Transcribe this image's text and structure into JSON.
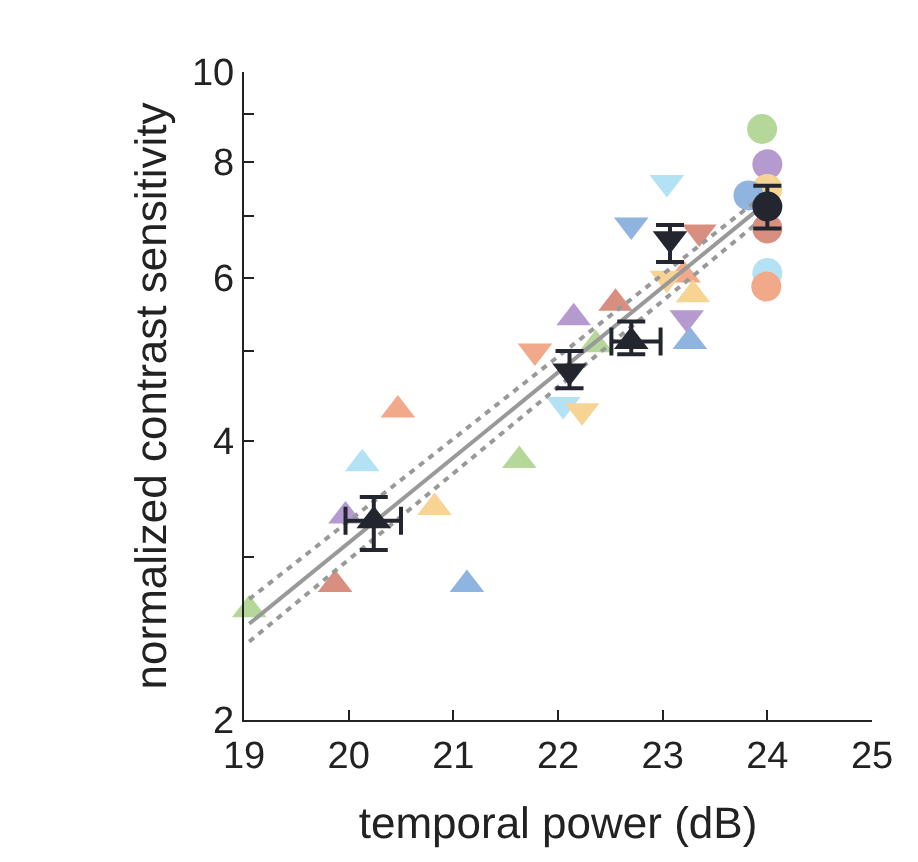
{
  "chart_data": {
    "type": "scatter",
    "xlabel": "temporal power (dB)",
    "ylabel": "normalized contrast sensitivity",
    "log": "y",
    "xlim": [
      19,
      25
    ],
    "xticks": [
      19,
      20,
      21,
      22,
      23,
      24,
      25
    ],
    "ylim": [
      2,
      10
    ],
    "yticks": [
      2,
      {
        "value": 3,
        "label": null
      },
      4,
      {
        "value": 5,
        "label": null
      },
      6,
      {
        "value": 7,
        "label": null
      },
      8,
      {
        "value": 9,
        "label": null
      },
      10
    ],
    "series": [
      {
        "marker": "triangle",
        "x": [
          19.05,
          19.87,
          21.13,
          19.97,
          20.13,
          20.47,
          20.82,
          21.63,
          22.15,
          22.55,
          22.36,
          23.26,
          23.2,
          23.29
        ],
        "values": [
          2.63,
          2.8,
          2.8,
          3.32,
          3.78,
          4.32,
          3.39,
          3.81,
          5.43,
          5.63,
          5.08,
          5.12,
          6.04,
          5.75
        ],
        "colors": [
          "#b5d89a",
          "#d98f80",
          "#8fb4e0",
          "#b59ad0",
          "#b3e2f5",
          "#f2a98a",
          "#f7d394",
          "#b5d89a",
          "#b59ad0",
          "#d98f80",
          "#b5d89a",
          "#8fb4e0",
          "#f2a98a",
          "#f7d394"
        ]
      },
      {
        "marker": "triangle-down",
        "x": [
          21.78,
          22.05,
          22.23,
          23.04,
          22.7,
          23.35,
          23.04,
          23.23
        ],
        "values": [
          5.0,
          4.38,
          4.31,
          7.6,
          6.84,
          6.72,
          5.99,
          5.43
        ],
        "colors": [
          "#f2a98a",
          "#b3e2f5",
          "#f7d394",
          "#b3e2f5",
          "#8fb4e0",
          "#d98f80",
          "#f7d394",
          "#b59ad0"
        ]
      },
      {
        "marker": "circle",
        "x": [
          23.95,
          24.0,
          24.0,
          23.82,
          24.0,
          24.0,
          23.99
        ],
        "values": [
          8.68,
          7.95,
          7.48,
          7.36,
          6.78,
          6.07,
          5.87
        ],
        "colors": [
          "#b5d89a",
          "#b59ad0",
          "#f7d394",
          "#8fb4e0",
          "#d98f80",
          "#b3e2f5",
          "#f2a98a"
        ]
      },
      {
        "type": "line",
        "line_style": "solid",
        "marker": "none",
        "color": "#999999",
        "x": [
          19.05,
          23.88
        ],
        "values": [
          2.54,
          7.06
        ]
      },
      {
        "type": "line",
        "line_style": "dotted",
        "marker": "none",
        "color": "#999999",
        "x": [
          19.05,
          23.88
        ],
        "values": [
          2.7,
          7.24
        ]
      },
      {
        "type": "line",
        "line_style": "dotted",
        "marker": "none",
        "color": "#999999",
        "x": [
          19.05,
          23.88
        ],
        "values": [
          2.43,
          6.84
        ]
      },
      {
        "marker": "triangle",
        "color": "#23262e",
        "x": [
          20.24,
          22.7
        ],
        "values": [
          3.28,
          5.12
        ],
        "errors": [
          [
            3.05,
            3.48
          ],
          [
            4.96,
            5.38
          ]
        ],
        "xerrors": [
          [
            19.97,
            20.5
          ],
          [
            22.51,
            22.98
          ]
        ]
      },
      {
        "marker": "triangle-down",
        "color": "#23262e",
        "x": [
          22.11,
          23.07
        ],
        "values": [
          4.76,
          6.61
        ],
        "errors": [
          [
            4.56,
            5.0
          ],
          [
            6.24,
            6.84
          ]
        ]
      },
      {
        "marker": "circle",
        "color": "#23262e",
        "x": [
          24.0
        ],
        "values": [
          7.16
        ],
        "errors": [
          [
            6.78,
            7.54
          ]
        ]
      }
    ]
  }
}
